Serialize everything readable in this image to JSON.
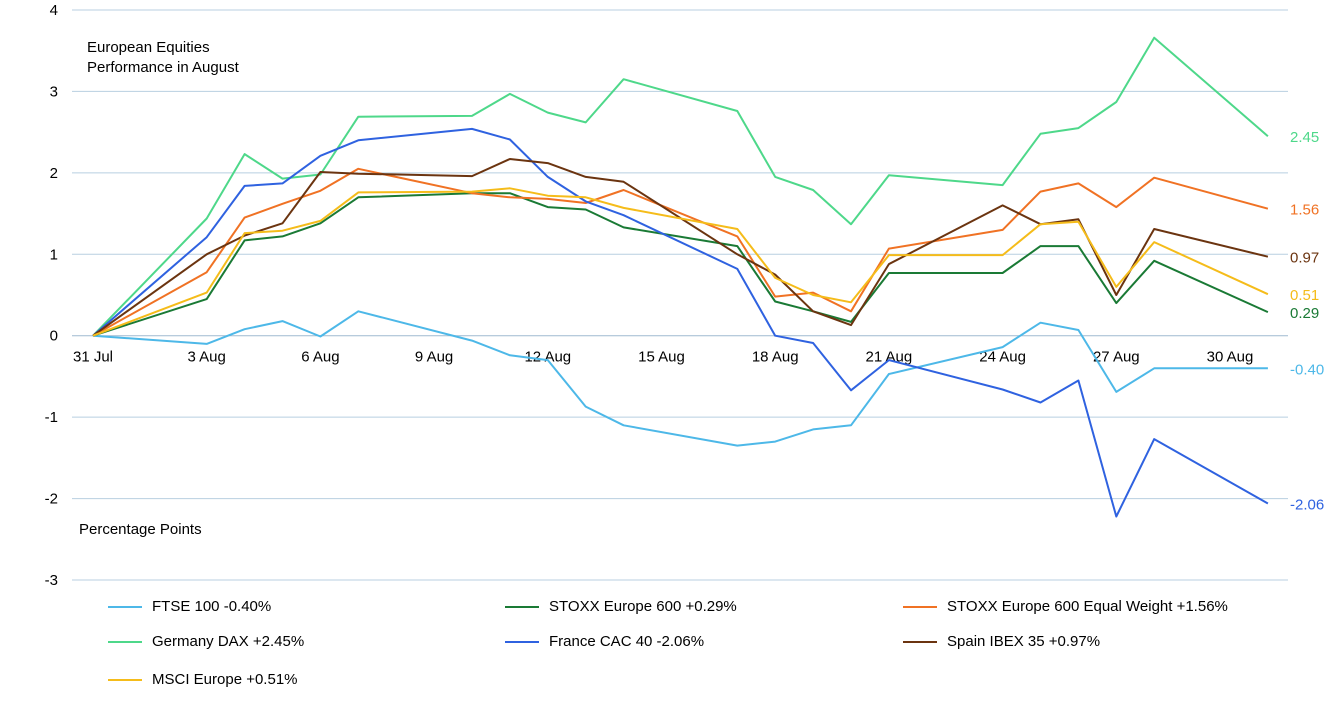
{
  "chart_data": {
    "type": "line",
    "title": "European Equities Performance in August",
    "title_lines": [
      "European Equities",
      "Performance in August"
    ],
    "ylabel": "Percentage Points",
    "ylim": [
      -3,
      4
    ],
    "yticks": [
      4,
      3,
      2,
      1,
      0,
      -1,
      -2,
      -3
    ],
    "grid": true,
    "legend_position": "bottom",
    "x": [
      "31 Jul",
      "1 Aug",
      "2 Aug",
      "3 Aug",
      "4 Aug",
      "5 Aug",
      "6 Aug",
      "7 Aug",
      "8 Aug",
      "9 Aug",
      "10 Aug",
      "11 Aug",
      "12 Aug",
      "13 Aug",
      "14 Aug",
      "15 Aug",
      "16 Aug",
      "17 Aug",
      "18 Aug",
      "19 Aug",
      "20 Aug",
      "21 Aug",
      "22 Aug",
      "23 Aug",
      "24 Aug",
      "25 Aug",
      "26 Aug",
      "27 Aug",
      "28 Aug",
      "29 Aug",
      "30 Aug",
      "31 Aug"
    ],
    "xtick_labels": [
      "31 Jul",
      "3 Aug",
      "6 Aug",
      "9 Aug",
      "12 Aug",
      "15 Aug",
      "18 Aug",
      "21 Aug",
      "24 Aug",
      "27 Aug",
      "30 Aug"
    ],
    "series": [
      {
        "name": "FTSE 100 -0.40%",
        "color": "#4db8e8",
        "end_label": "-0.40",
        "values": [
          0,
          null,
          null,
          -0.1,
          0.08,
          0.18,
          -0.01,
          0.3,
          null,
          null,
          -0.06,
          -0.24,
          -0.3,
          -0.87,
          -1.1,
          null,
          null,
          -1.35,
          -1.3,
          -1.15,
          -1.1,
          -0.47,
          null,
          null,
          -0.14,
          0.16,
          0.07,
          -0.69,
          -0.4,
          null,
          null,
          -0.4
        ]
      },
      {
        "name": "STOXX Europe 600 +0.29%",
        "color": "#1a7a35",
        "end_label": "0.29",
        "values": [
          0,
          null,
          null,
          0.45,
          1.17,
          1.22,
          1.38,
          1.7,
          null,
          null,
          1.75,
          1.75,
          1.58,
          1.55,
          1.33,
          null,
          null,
          1.1,
          0.42,
          0.3,
          0.17,
          0.77,
          null,
          null,
          0.77,
          1.1,
          1.1,
          0.4,
          0.92,
          null,
          null,
          0.29
        ]
      },
      {
        "name": "STOXX Europe 600 Equal Weight +1.56%",
        "color": "#f07224",
        "end_label": "1.56",
        "values": [
          0,
          null,
          null,
          0.78,
          1.45,
          1.62,
          1.78,
          2.05,
          null,
          null,
          1.75,
          1.7,
          1.68,
          1.63,
          1.79,
          null,
          null,
          1.22,
          0.48,
          0.53,
          0.3,
          1.07,
          null,
          null,
          1.3,
          1.77,
          1.87,
          1.58,
          1.94,
          null,
          null,
          1.56
        ]
      },
      {
        "name": "Germany DAX +2.45%",
        "color": "#4ed88a",
        "end_label": "2.45",
        "values": [
          0,
          null,
          null,
          1.44,
          2.23,
          1.93,
          1.98,
          2.69,
          null,
          null,
          2.7,
          2.97,
          2.74,
          2.62,
          3.15,
          null,
          null,
          2.76,
          1.95,
          1.79,
          1.37,
          1.97,
          null,
          null,
          1.85,
          2.48,
          2.55,
          2.87,
          3.66,
          null,
          null,
          2.45
        ]
      },
      {
        "name": "France CAC 40 -2.06%",
        "color": "#2f62e0",
        "end_label": "-2.06",
        "values": [
          0,
          null,
          null,
          1.21,
          1.84,
          1.87,
          2.21,
          2.4,
          null,
          null,
          2.54,
          2.41,
          1.95,
          1.65,
          1.48,
          null,
          null,
          0.82,
          0.0,
          -0.09,
          -0.67,
          -0.3,
          null,
          null,
          -0.66,
          -0.82,
          -0.55,
          -2.22,
          -1.27,
          null,
          null,
          -2.06
        ]
      },
      {
        "name": "Spain IBEX 35 +0.97%",
        "color": "#6b3410",
        "end_label": "0.97",
        "values": [
          0,
          null,
          null,
          1.0,
          1.23,
          1.38,
          2.01,
          1.99,
          null,
          null,
          1.96,
          2.17,
          2.12,
          1.95,
          1.89,
          null,
          null,
          1.0,
          0.75,
          0.3,
          0.13,
          0.88,
          null,
          null,
          1.6,
          1.37,
          1.43,
          0.5,
          1.31,
          null,
          null,
          0.97
        ]
      },
      {
        "name": "MSCI Europe +0.51%",
        "color": "#f5bc1a",
        "end_label": "0.51",
        "values": [
          0,
          null,
          null,
          0.53,
          1.26,
          1.29,
          1.41,
          1.76,
          null,
          null,
          1.77,
          1.81,
          1.72,
          1.7,
          1.57,
          null,
          null,
          1.31,
          0.71,
          0.5,
          0.41,
          0.99,
          null,
          null,
          0.99,
          1.37,
          1.4,
          0.6,
          1.15,
          null,
          null,
          0.51
        ]
      }
    ]
  }
}
